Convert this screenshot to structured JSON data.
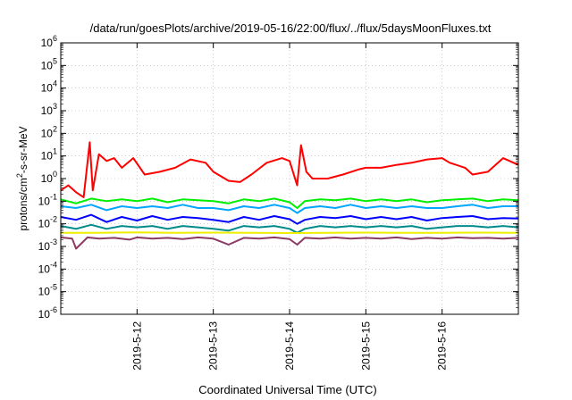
{
  "chart_data": {
    "type": "line",
    "title": "/data/run/goesPlots/archive/2019-05-16/22:00/flux/../flux/5daysMoonFluxes.txt",
    "xlabel": "Coordinated Universal Time (UTC)",
    "ylabel": "protons/cm²-s-sr-MeV",
    "yscale": "log",
    "ylim_exp": [
      -6,
      6
    ],
    "ytick_exponents": [
      -6,
      -5,
      -4,
      -3,
      -2,
      -1,
      0,
      1,
      2,
      3,
      4,
      5,
      6
    ],
    "ytick_base": "10",
    "xlim_days": [
      11.0,
      17.0
    ],
    "xticks": [
      {
        "day": 12,
        "label": "2019-5-12"
      },
      {
        "day": 13,
        "label": "2019-5-13"
      },
      {
        "day": 14,
        "label": "2019-5-14"
      },
      {
        "day": 15,
        "label": "2019-5-15"
      },
      {
        "day": 16,
        "label": "2019-5-16"
      }
    ],
    "grid": true,
    "series": [
      {
        "color": "#ff0000",
        "x": [
          11.0,
          11.1,
          11.2,
          11.3,
          11.38,
          11.42,
          11.5,
          11.6,
          11.7,
          11.8,
          11.95,
          12.1,
          12.3,
          12.5,
          12.7,
          12.9,
          13.0,
          13.2,
          13.35,
          13.5,
          13.7,
          13.9,
          14.0,
          14.1,
          14.15,
          14.22,
          14.3,
          14.5,
          14.7,
          14.9,
          15.0,
          15.2,
          15.4,
          15.6,
          15.8,
          16.0,
          16.1,
          16.3,
          16.4,
          16.6,
          16.8,
          17.0
        ],
        "y": [
          0.3,
          0.5,
          0.25,
          0.15,
          40,
          0.3,
          12,
          6,
          8,
          3,
          8,
          1.5,
          2,
          3,
          7,
          5,
          2,
          0.8,
          0.7,
          1.5,
          5,
          8,
          6,
          0.5,
          30,
          2,
          1,
          1,
          1.5,
          2.5,
          3,
          3,
          4,
          5,
          7,
          8,
          5,
          3,
          1.5,
          2,
          8,
          4
        ]
      },
      {
        "color": "#00ee00",
        "x": [
          11.0,
          11.2,
          11.4,
          11.6,
          11.8,
          12.0,
          12.2,
          12.4,
          12.6,
          12.8,
          13.0,
          13.2,
          13.4,
          13.6,
          13.8,
          14.0,
          14.1,
          14.2,
          14.4,
          14.6,
          14.8,
          15.0,
          15.2,
          15.4,
          15.6,
          15.8,
          16.0,
          16.2,
          16.4,
          16.6,
          16.8,
          17.0
        ],
        "y": [
          0.12,
          0.08,
          0.13,
          0.1,
          0.12,
          0.1,
          0.13,
          0.09,
          0.12,
          0.11,
          0.1,
          0.08,
          0.12,
          0.1,
          0.13,
          0.09,
          0.05,
          0.1,
          0.12,
          0.11,
          0.13,
          0.1,
          0.12,
          0.1,
          0.12,
          0.09,
          0.11,
          0.12,
          0.13,
          0.1,
          0.12,
          0.11
        ]
      },
      {
        "color": "#00a6ff",
        "x": [
          11.0,
          11.2,
          11.4,
          11.6,
          11.8,
          12.0,
          12.2,
          12.4,
          12.6,
          12.8,
          13.0,
          13.2,
          13.4,
          13.6,
          13.8,
          14.0,
          14.1,
          14.2,
          14.4,
          14.6,
          14.8,
          15.0,
          15.2,
          15.4,
          15.6,
          15.8,
          16.0,
          16.2,
          16.4,
          16.6,
          16.8,
          17.0
        ],
        "y": [
          0.06,
          0.05,
          0.07,
          0.04,
          0.06,
          0.05,
          0.06,
          0.05,
          0.07,
          0.05,
          0.05,
          0.04,
          0.06,
          0.05,
          0.07,
          0.05,
          0.03,
          0.05,
          0.06,
          0.05,
          0.07,
          0.05,
          0.06,
          0.05,
          0.06,
          0.05,
          0.05,
          0.06,
          0.07,
          0.05,
          0.06,
          0.06
        ]
      },
      {
        "color": "#0000ff",
        "x": [
          11.0,
          11.2,
          11.4,
          11.6,
          11.8,
          12.0,
          12.2,
          12.4,
          12.6,
          12.8,
          13.0,
          13.2,
          13.4,
          13.6,
          13.8,
          14.0,
          14.1,
          14.2,
          14.4,
          14.6,
          14.8,
          15.0,
          15.2,
          15.4,
          15.6,
          15.8,
          16.0,
          16.2,
          16.4,
          16.6,
          16.8,
          17.0
        ],
        "y": [
          0.02,
          0.015,
          0.025,
          0.012,
          0.02,
          0.014,
          0.022,
          0.015,
          0.02,
          0.018,
          0.015,
          0.012,
          0.02,
          0.015,
          0.022,
          0.016,
          0.01,
          0.015,
          0.02,
          0.018,
          0.022,
          0.016,
          0.02,
          0.016,
          0.02,
          0.014,
          0.018,
          0.02,
          0.022,
          0.016,
          0.018,
          0.017
        ]
      },
      {
        "color": "#008b8b",
        "x": [
          11.0,
          11.2,
          11.4,
          11.6,
          11.8,
          12.0,
          12.2,
          12.4,
          12.6,
          12.8,
          13.0,
          13.2,
          13.4,
          13.6,
          13.8,
          14.0,
          14.1,
          14.2,
          14.4,
          14.6,
          14.8,
          15.0,
          15.2,
          15.4,
          15.6,
          15.8,
          16.0,
          16.2,
          16.4,
          16.6,
          16.8,
          17.0
        ],
        "y": [
          0.008,
          0.006,
          0.009,
          0.006,
          0.008,
          0.007,
          0.008,
          0.006,
          0.008,
          0.007,
          0.006,
          0.005,
          0.008,
          0.007,
          0.008,
          0.006,
          0.004,
          0.006,
          0.008,
          0.007,
          0.008,
          0.007,
          0.008,
          0.007,
          0.008,
          0.006,
          0.007,
          0.008,
          0.008,
          0.007,
          0.008,
          0.007
        ]
      },
      {
        "color": "#eeee00",
        "x": [
          11.0,
          11.5,
          12.0,
          12.5,
          13.0,
          13.5,
          14.0,
          14.5,
          15.0,
          15.5,
          16.0,
          16.5,
          17.0
        ],
        "y": [
          0.004,
          0.004,
          0.0042,
          0.004,
          0.0041,
          0.004,
          0.0039,
          0.004,
          0.0041,
          0.004,
          0.004,
          0.0041,
          0.004
        ]
      },
      {
        "color": "#8b3a62",
        "x": [
          11.0,
          11.15,
          11.2,
          11.35,
          11.5,
          11.7,
          11.9,
          12.0,
          12.2,
          12.4,
          12.6,
          12.8,
          13.0,
          13.2,
          13.4,
          13.6,
          13.8,
          14.0,
          14.1,
          14.2,
          14.4,
          14.6,
          14.8,
          15.0,
          15.2,
          15.4,
          15.6,
          15.8,
          16.0,
          16.2,
          16.4,
          16.6,
          16.8,
          17.0
        ],
        "y": [
          0.0025,
          0.0022,
          0.0008,
          0.0025,
          0.0022,
          0.0024,
          0.002,
          0.0025,
          0.0022,
          0.0024,
          0.0021,
          0.0025,
          0.0022,
          0.0012,
          0.0024,
          0.0022,
          0.0025,
          0.0021,
          0.0012,
          0.0024,
          0.0022,
          0.0025,
          0.0022,
          0.0024,
          0.0022,
          0.0025,
          0.0021,
          0.0024,
          0.0022,
          0.0025,
          0.0023,
          0.0024,
          0.0022,
          0.0024
        ]
      }
    ]
  }
}
